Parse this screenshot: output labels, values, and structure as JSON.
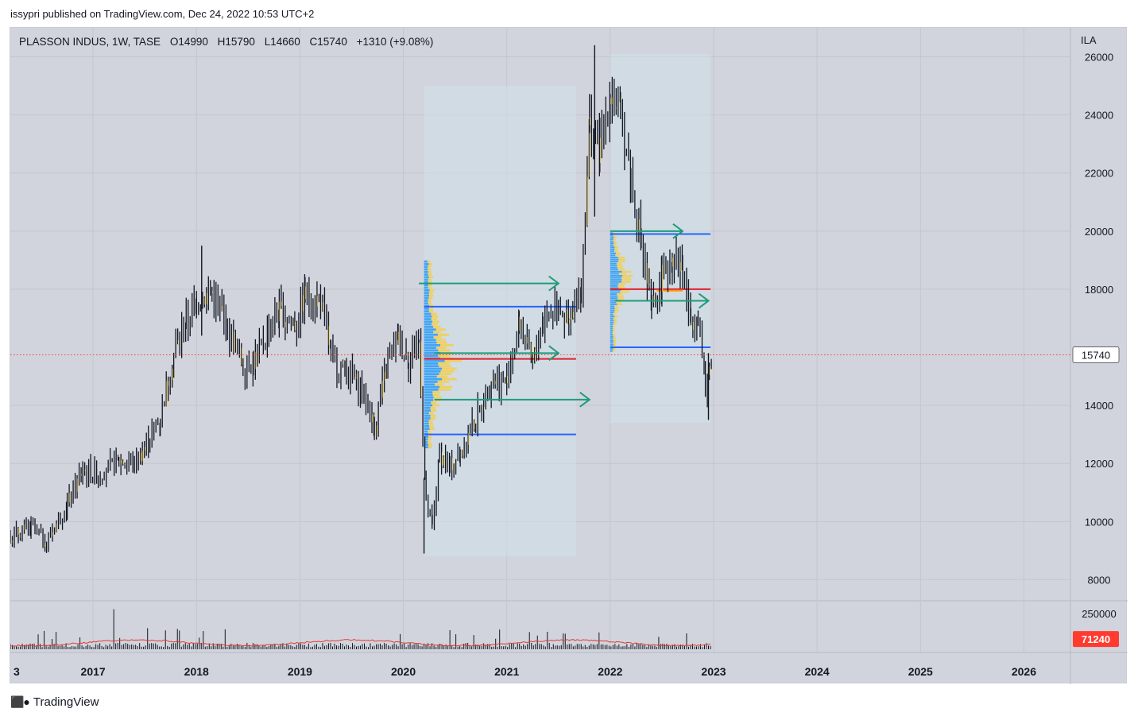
{
  "header": {
    "published_by": "issypri published on TradingView.com, Dec 24, 2022 10:53 UTC+2"
  },
  "legend": {
    "symbol": "PLASSON INDUS, 1W, TASE",
    "open": "O14990",
    "high": "H15790",
    "low": "L14660",
    "close": "C15740",
    "change": "+1310 (+9.08%)"
  },
  "price_scale": {
    "currency": "ILA"
  },
  "footer": {
    "brand": "TradingView",
    "logo_icon": "tradingview-logo-icon"
  },
  "colors": {
    "background": "#d1d4dc",
    "grid": "#c3c6ce",
    "candle": "#131722",
    "profile_blue": "#42a5f5",
    "profile_yellow": "#f0d060",
    "level_blue": "#2962ff",
    "level_red": "#e0202c",
    "level_orange": "#ff9800",
    "arrow_green": "#1e9c7a",
    "volume_ma": "#e53935",
    "last_price": "#ff3b30"
  },
  "chart_data": {
    "type": "candlestick",
    "interval": "1W",
    "xlim": [
      2016.2,
      2026.45
    ],
    "ylim": [
      7300,
      27000
    ],
    "x_ticks": [
      "3",
      "2017",
      "2018",
      "2019",
      "2020",
      "2021",
      "2022",
      "2023",
      "2024",
      "2025",
      "2026"
    ],
    "y_ticks": [
      8000,
      10000,
      12000,
      14000,
      18000,
      20000,
      22000,
      24000,
      26000
    ],
    "grid": true,
    "last_price": 15740,
    "last_price_label": "15740",
    "price_path": [
      [
        2016.2,
        9500
      ],
      [
        2016.4,
        9800
      ],
      [
        2016.55,
        9300
      ],
      [
        2016.75,
        10600
      ],
      [
        2016.9,
        11800
      ],
      [
        2017.05,
        11600
      ],
      [
        2017.25,
        12100
      ],
      [
        2017.4,
        12000
      ],
      [
        2017.55,
        12900
      ],
      [
        2017.65,
        13600
      ],
      [
        2017.78,
        15800
      ],
      [
        2017.9,
        16800
      ],
      [
        2018.0,
        17600
      ],
      [
        2018.15,
        17900
      ],
      [
        2018.3,
        16600
      ],
      [
        2018.45,
        15400
      ],
      [
        2018.55,
        15500
      ],
      [
        2018.7,
        16600
      ],
      [
        2018.8,
        17200
      ],
      [
        2018.95,
        16800
      ],
      [
        2019.05,
        17800
      ],
      [
        2019.2,
        17600
      ],
      [
        2019.3,
        15700
      ],
      [
        2019.45,
        15100
      ],
      [
        2019.6,
        14600
      ],
      [
        2019.72,
        13200
      ],
      [
        2019.85,
        15500
      ],
      [
        2019.95,
        16300
      ],
      [
        2020.05,
        15600
      ],
      [
        2020.15,
        16200
      ],
      [
        2020.22,
        10500
      ],
      [
        2020.28,
        9800
      ],
      [
        2020.35,
        12300
      ],
      [
        2020.45,
        11900
      ],
      [
        2020.55,
        12400
      ],
      [
        2020.7,
        13500
      ],
      [
        2020.85,
        14900
      ],
      [
        2021.0,
        14800
      ],
      [
        2021.12,
        16800
      ],
      [
        2021.25,
        15400
      ],
      [
        2021.35,
        16900
      ],
      [
        2021.5,
        17600
      ],
      [
        2021.6,
        16700
      ],
      [
        2021.72,
        18000
      ],
      [
        2021.8,
        23600
      ],
      [
        2021.9,
        22800
      ],
      [
        2022.0,
        24800
      ],
      [
        2022.1,
        24000
      ],
      [
        2022.2,
        21800
      ],
      [
        2022.3,
        19500
      ],
      [
        2022.4,
        17300
      ],
      [
        2022.5,
        18400
      ],
      [
        2022.6,
        19200
      ],
      [
        2022.7,
        18700
      ],
      [
        2022.78,
        16900
      ],
      [
        2022.85,
        17200
      ],
      [
        2022.92,
        14500
      ],
      [
        2022.98,
        15740
      ]
    ],
    "volume_profiles": [
      {
        "x_range": [
          2020.2,
          2021.67
        ],
        "y_range": [
          8800,
          25000
        ],
        "levels": [
          {
            "price": 17400,
            "color": "blue"
          },
          {
            "price": 15600,
            "color": "red"
          },
          {
            "price": 13000,
            "color": "blue"
          }
        ]
      },
      {
        "x_range": [
          2022.0,
          2022.97
        ],
        "y_range": [
          13400,
          26100
        ],
        "levels": [
          {
            "price": 19900,
            "color": "blue"
          },
          {
            "price": 18000,
            "color": "red"
          },
          {
            "price": 16000,
            "color": "blue"
          }
        ]
      }
    ],
    "arrows": [
      {
        "x1": 2022.0,
        "x2": 2022.7,
        "y": 20000
      },
      {
        "x1": 2020.15,
        "x2": 2021.5,
        "y": 18200
      },
      {
        "x1": 2022.05,
        "x2": 2022.95,
        "y": 17600
      },
      {
        "x1": 2020.3,
        "x2": 2021.5,
        "y": 15800
      },
      {
        "x1": 2020.3,
        "x2": 2021.8,
        "y": 14200
      }
    ],
    "volume": {
      "ylim": [
        0,
        300000
      ],
      "y_ticks": [
        250000
      ],
      "last_value": 71240,
      "last_value_label": "71240"
    }
  }
}
